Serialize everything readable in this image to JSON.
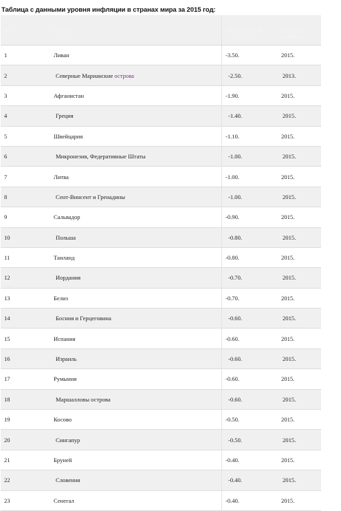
{
  "caption": "Таблица с данными уровня инфляции в странах мира за 2015 год:",
  "header": [
    "№",
    "Страна",
    "Инфляция, %",
    "2015 год данные"
  ],
  "rows": [
    {
      "n": "1",
      "country": "Ливан",
      "link": "",
      "val": "-3.50.",
      "year": "2015.",
      "alt": false,
      "ind": false
    },
    {
      "n": "2",
      "country": "Северные Марианские ",
      "link": "острова",
      "val": "-2.50.",
      "year": "2013.",
      "alt": true,
      "ind": true
    },
    {
      "n": "3",
      "country": "Афганистан",
      "link": "",
      "val": "-1.90.",
      "year": "2015.",
      "alt": false,
      "ind": false
    },
    {
      "n": "4",
      "country": "Греция",
      "link": "",
      "val": "-1.40.",
      "year": "2015.",
      "alt": true,
      "ind": true
    },
    {
      "n": "5",
      "country": "Швейцария",
      "link": "",
      "val": "-1.10.",
      "year": "2015.",
      "alt": false,
      "ind": false
    },
    {
      "n": "6",
      "country": "Микронезия, Федеративные Штаты",
      "link": "",
      "val": "-1.00.",
      "year": "2015.",
      "alt": true,
      "ind": true
    },
    {
      "n": "7",
      "country": "Литва",
      "link": "",
      "val": "-1.00.",
      "year": "2015.",
      "alt": false,
      "ind": false
    },
    {
      "n": "8",
      "country": "Сент-Винсент и Гренадины",
      "link": "",
      "val": "-1.00.",
      "year": "2015.",
      "alt": true,
      "ind": true
    },
    {
      "n": "9",
      "country": "Сальвадор",
      "link": "",
      "val": "-0.90.",
      "year": "2015.",
      "alt": false,
      "ind": false
    },
    {
      "n": "10",
      "country": "Польша",
      "link": "",
      "val": "-0.80.",
      "year": "2015.",
      "alt": true,
      "ind": true
    },
    {
      "n": "11",
      "country": "Таиланд",
      "link": "",
      "val": "-0.80.",
      "year": "2015.",
      "alt": false,
      "ind": false
    },
    {
      "n": "12",
      "country": "Иордания",
      "link": "",
      "val": "-0.70.",
      "year": "2015.",
      "alt": true,
      "ind": true
    },
    {
      "n": "13",
      "country": "Белиз",
      "link": "",
      "val": "-0.70.",
      "year": "2015.",
      "alt": false,
      "ind": false
    },
    {
      "n": "14",
      "country": "Босния и Герцеговина",
      "link": "",
      "val": "-0.60.",
      "year": "2015.",
      "alt": true,
      "ind": true
    },
    {
      "n": "15",
      "country": "Испания",
      "link": "",
      "val": "-0.60.",
      "year": "2015.",
      "alt": false,
      "ind": false
    },
    {
      "n": "16",
      "country": "Израиль",
      "link": "",
      "val": "-0.60.",
      "year": "2015.",
      "alt": true,
      "ind": true
    },
    {
      "n": "17",
      "country": "Румыния",
      "link": "",
      "val": "-0.60.",
      "year": "2015.",
      "alt": false,
      "ind": false
    },
    {
      "n": "18",
      "country": "Маршалловы острова",
      "link": "",
      "val": "-0.60.",
      "year": "2015.",
      "alt": true,
      "ind": true
    },
    {
      "n": "19",
      "country": "Косово",
      "link": "",
      "val": "-0.50.",
      "year": "2015.",
      "alt": false,
      "ind": false
    },
    {
      "n": "20",
      "country": "Сингапур",
      "link": "",
      "val": "-0.50.",
      "year": "2015.",
      "alt": true,
      "ind": true
    },
    {
      "n": "21",
      "country": "Бруней",
      "link": "",
      "val": "-0.40.",
      "year": "2015.",
      "alt": false,
      "ind": false
    },
    {
      "n": "22",
      "country": "Словения",
      "link": "",
      "val": "-0.40.",
      "year": "2015.",
      "alt": true,
      "ind": true
    },
    {
      "n": "23",
      "country": "Сенегал",
      "link": "",
      "val": "-0.40.",
      "year": "2015.",
      "alt": false,
      "ind": false
    }
  ]
}
